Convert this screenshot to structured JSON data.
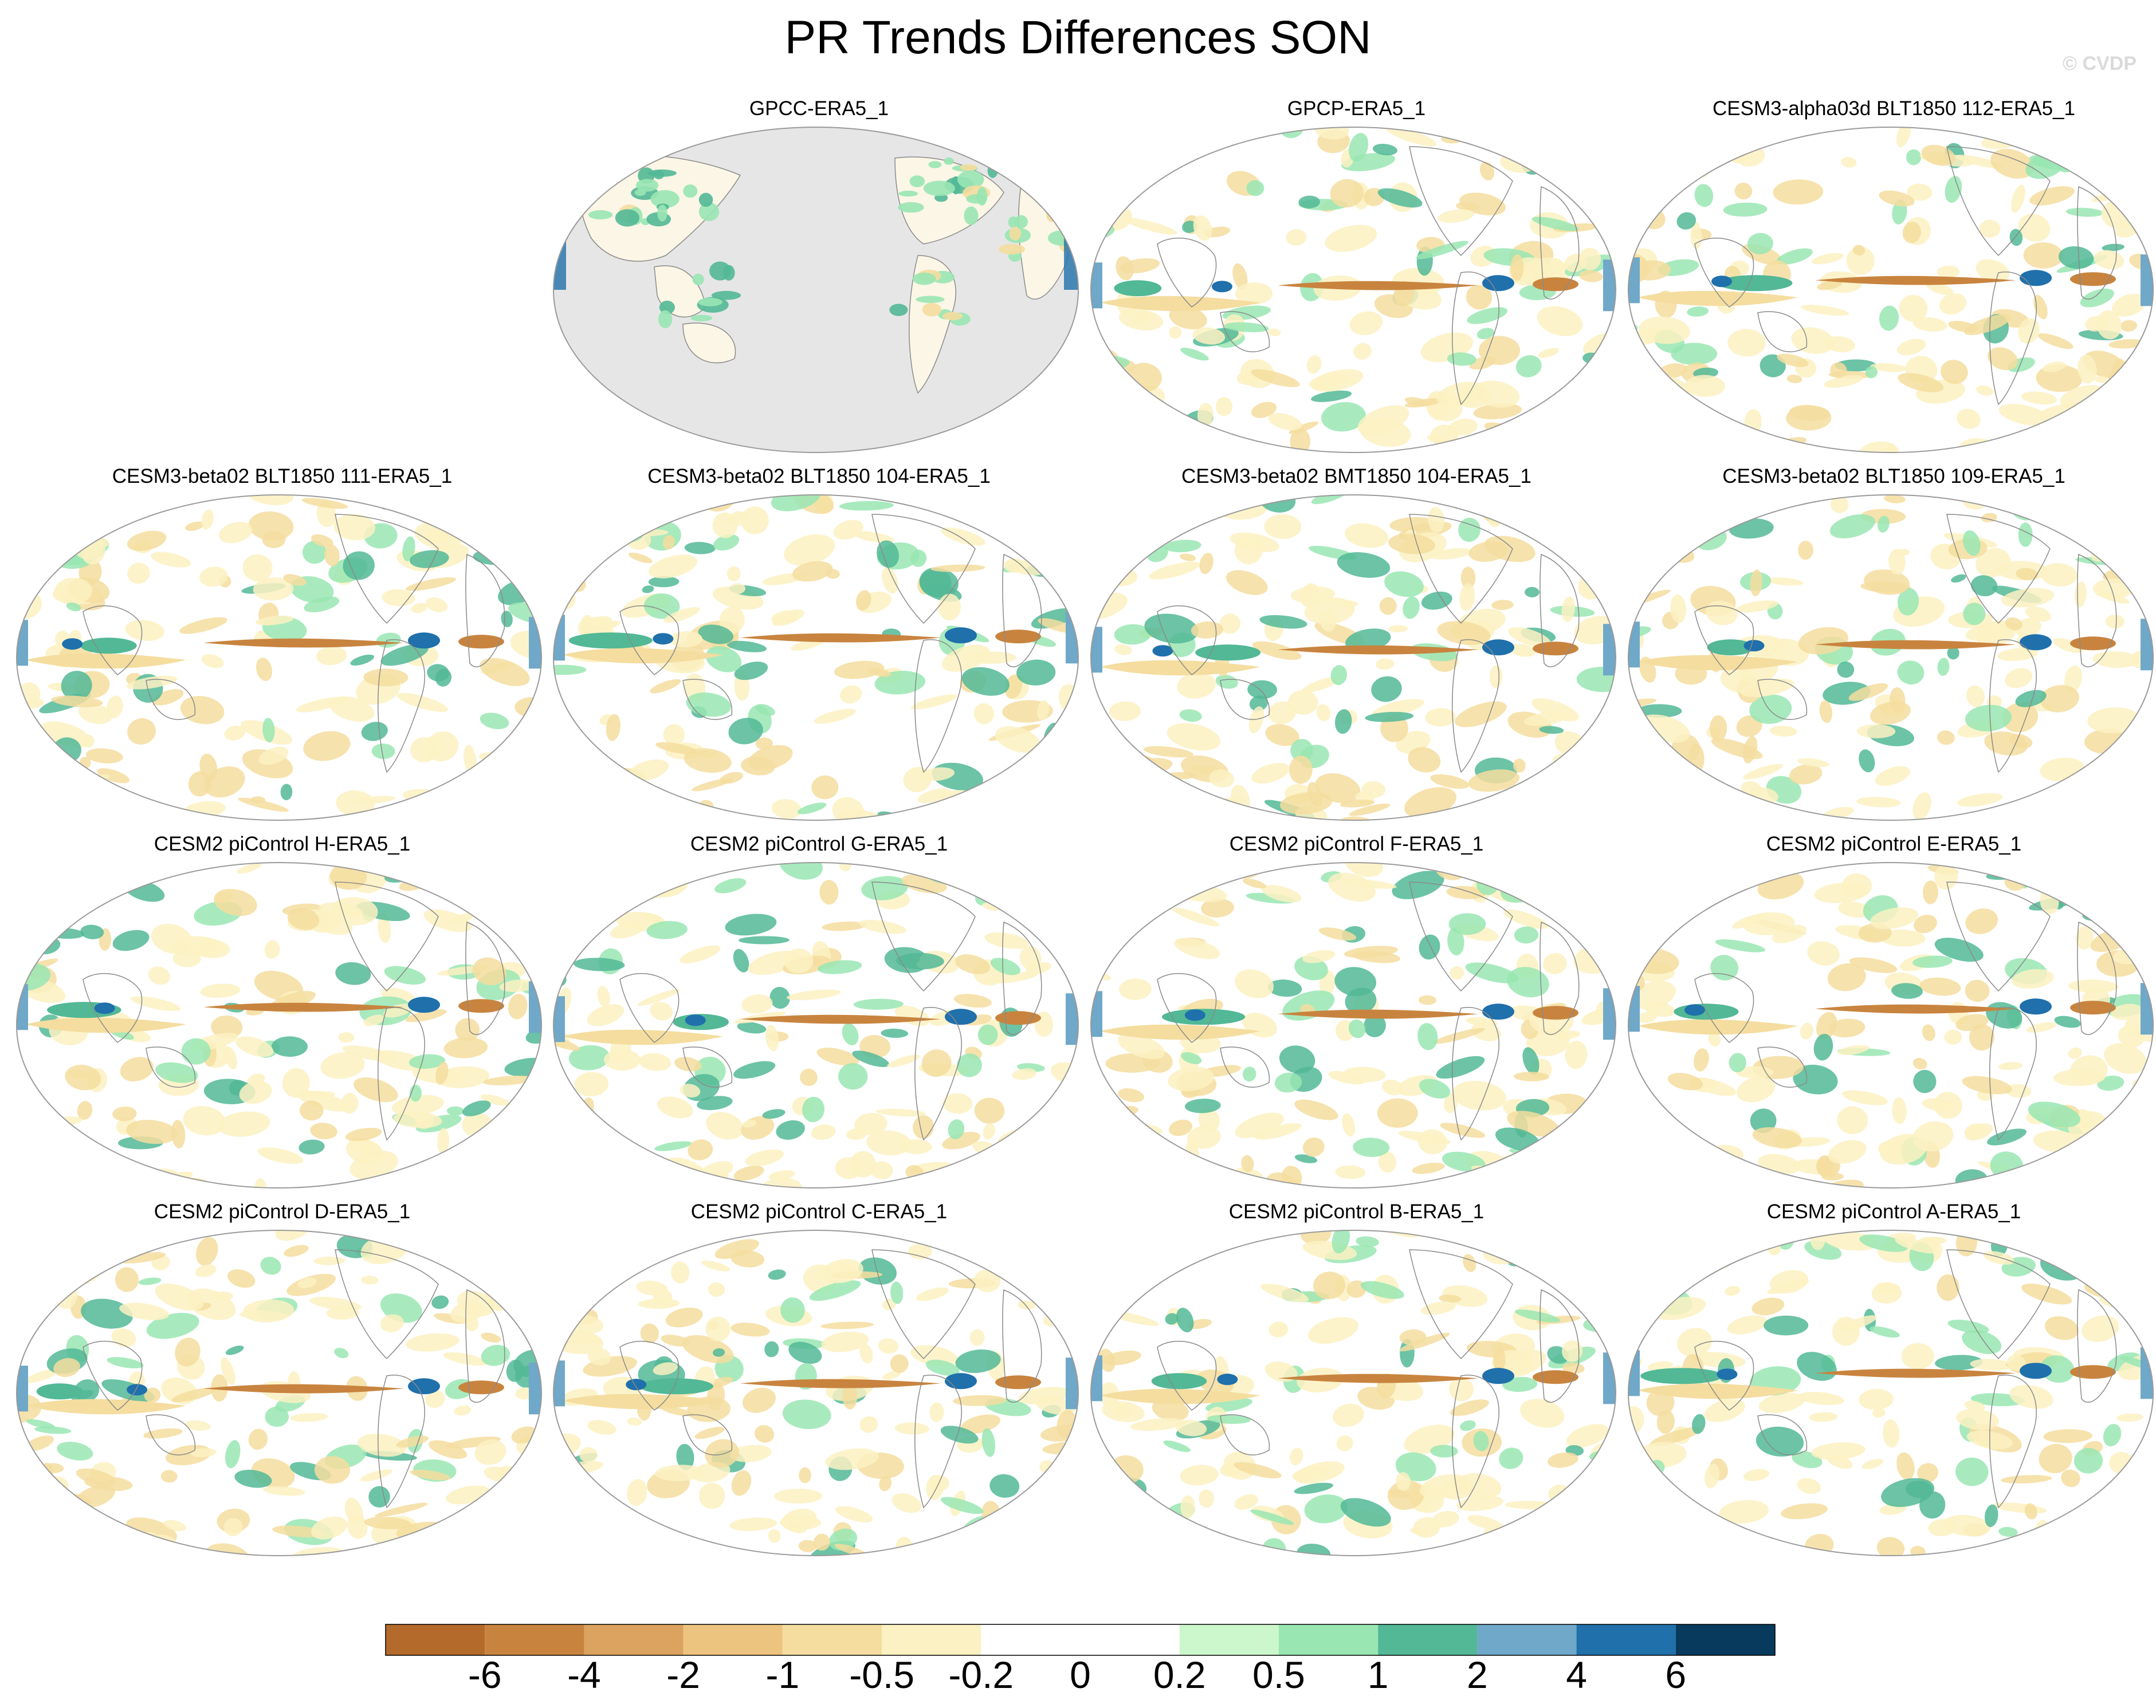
{
  "title": "PR Trends Differences SON",
  "watermark": "© CVDP",
  "panels": [
    {
      "title": "GPCC-ERA5_1",
      "kind": "obs"
    },
    {
      "title": "GPCP-ERA5_1",
      "kind": "model"
    },
    {
      "title": "CESM3-alpha03d BLT1850 112-ERA5_1",
      "kind": "model"
    },
    {
      "title": "CESM3-beta02 BLT1850 111-ERA5_1",
      "kind": "model"
    },
    {
      "title": "CESM3-beta02 BLT1850 104-ERA5_1",
      "kind": "model"
    },
    {
      "title": "CESM3-beta02 BMT1850 104-ERA5_1",
      "kind": "model"
    },
    {
      "title": "CESM3-beta02 BLT1850 109-ERA5_1",
      "kind": "model"
    },
    {
      "title": "CESM2 piControl H-ERA5_1",
      "kind": "model"
    },
    {
      "title": "CESM2 piControl G-ERA5_1",
      "kind": "model"
    },
    {
      "title": "CESM2 piControl F-ERA5_1",
      "kind": "model"
    },
    {
      "title": "CESM2 piControl E-ERA5_1",
      "kind": "model"
    },
    {
      "title": "CESM2 piControl D-ERA5_1",
      "kind": "model"
    },
    {
      "title": "CESM2 piControl C-ERA5_1",
      "kind": "model"
    },
    {
      "title": "CESM2 piControl B-ERA5_1",
      "kind": "model"
    },
    {
      "title": "CESM2 piControl A-ERA5_1",
      "kind": "model"
    }
  ],
  "colorbar": {
    "labels": [
      "-6",
      "-4",
      "-2",
      "-1",
      "-0.5",
      "-0.2",
      "0",
      "0.2",
      "0.5",
      "1",
      "2",
      "4",
      "6"
    ],
    "colors": [
      "#b36a2b",
      "#c8843f",
      "#dba35f",
      "#edc47f",
      "#f4dd9f",
      "#fbf1c2",
      "#ffffff",
      "#ffffff",
      "#ccf7cc",
      "#99e6b3",
      "#52b896",
      "#6fa8c8",
      "#1f70ab",
      "#073a5c"
    ]
  },
  "colors": {
    "missing": "#e6e6e6",
    "coast": "#8a8a8a",
    "brown_strong": "#c8843f",
    "brown_light": "#f4dd9f",
    "green_light": "#99e6b3",
    "teal": "#52b896",
    "blue": "#1f70ab"
  }
}
